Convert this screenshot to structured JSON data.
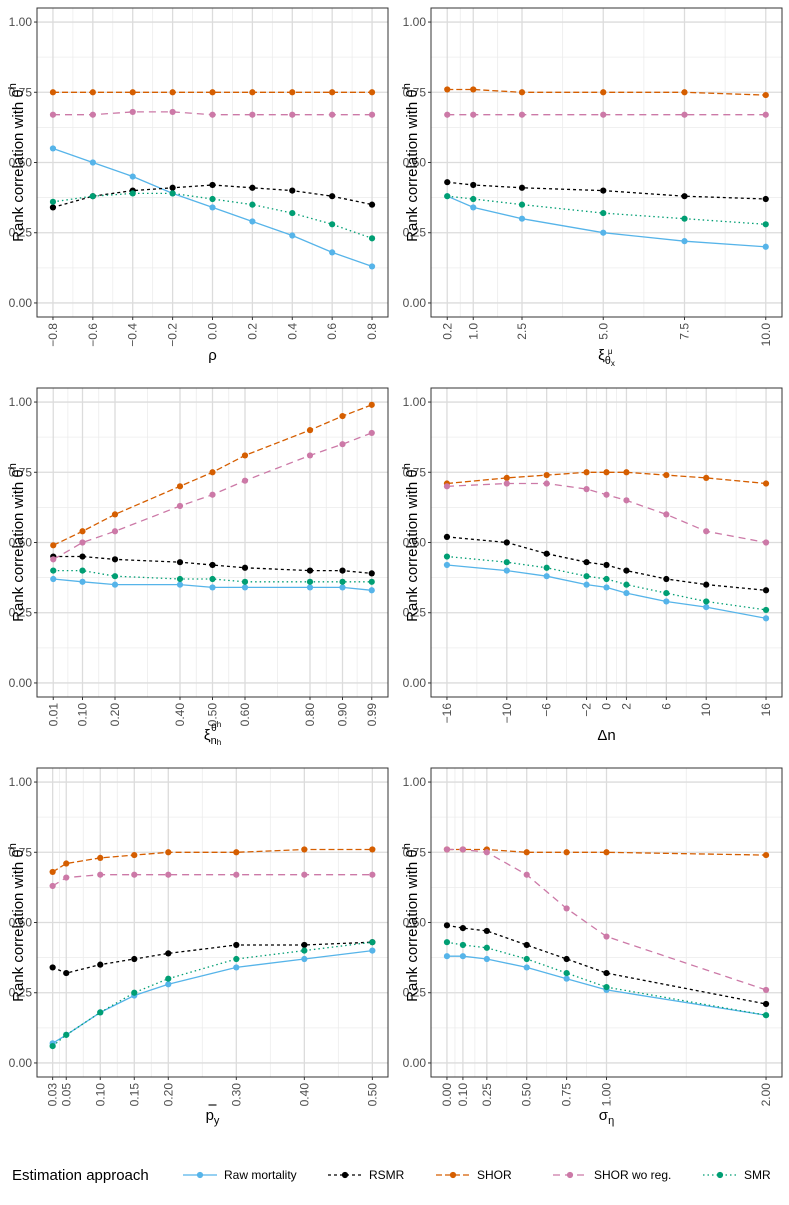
{
  "figure": {
    "ylabel": "Rank correlation with θ",
    "ylabel_sup": "h",
    "yticks": [
      "0.00",
      "0.25",
      "0.50",
      "0.75",
      "1.00"
    ]
  },
  "series_styles": [
    {
      "name": "Raw mortality",
      "color": "#56B4E9",
      "dash": "",
      "line": "solid"
    },
    {
      "name": "RSMR",
      "color": "#000000",
      "dash": "3,3",
      "line": "dotted"
    },
    {
      "name": "SHOR",
      "color": "#D55E00",
      "dash": "6,3",
      "line": "dashed"
    },
    {
      "name": "SHOR wo reg.",
      "color": "#CC79A7",
      "dash": "7,5",
      "line": "longdash"
    },
    {
      "name": "SMR",
      "color": "#009E73",
      "dash": "1.5,3",
      "line": "dotted"
    }
  ],
  "legend": {
    "title": "Estimation approach",
    "items": [
      "Raw mortality",
      "RSMR",
      "SHOR",
      "SHOR wo reg.",
      "SMR"
    ]
  },
  "chart_data": [
    {
      "type": "line",
      "xlabel": "ρ",
      "x": [
        -0.8,
        -0.6,
        -0.4,
        -0.2,
        0.0,
        0.2,
        0.4,
        0.6,
        0.8
      ],
      "xtick_labels": [
        "−0.8",
        "−0.6",
        "−0.4",
        "−0.2",
        "0.0",
        "0.2",
        "0.4",
        "0.6",
        "0.8"
      ],
      "xlim": [
        -0.88,
        0.88
      ],
      "ylim": [
        -0.05,
        1.05
      ],
      "series": [
        {
          "name": "Raw mortality",
          "values": [
            0.55,
            0.5,
            0.45,
            0.39,
            0.34,
            0.29,
            0.24,
            0.18,
            0.13
          ]
        },
        {
          "name": "RSMR",
          "values": [
            0.34,
            0.38,
            0.4,
            0.41,
            0.42,
            0.41,
            0.4,
            0.38,
            0.35
          ]
        },
        {
          "name": "SHOR",
          "values": [
            0.75,
            0.75,
            0.75,
            0.75,
            0.75,
            0.75,
            0.75,
            0.75,
            0.75
          ]
        },
        {
          "name": "SHOR wo reg.",
          "values": [
            0.67,
            0.67,
            0.68,
            0.68,
            0.67,
            0.67,
            0.67,
            0.67,
            0.67
          ]
        },
        {
          "name": "SMR",
          "values": [
            0.36,
            0.38,
            0.39,
            0.39,
            0.37,
            0.35,
            0.32,
            0.28,
            0.23
          ]
        }
      ]
    },
    {
      "type": "line",
      "xlabel": "ξ",
      "xlabel_sub": "θ",
      "xlabel_sub2": "x",
      "xlabel_supsup": "μ",
      "x": [
        0.2,
        1.0,
        2.5,
        5.0,
        7.5,
        10.0
      ],
      "xtick_labels": [
        "0.2",
        "1.0",
        "2.5",
        "5.0",
        "7.5",
        "10.0"
      ],
      "xlim": [
        -0.3,
        10.5
      ],
      "ylim": [
        -0.05,
        1.05
      ],
      "series": [
        {
          "name": "Raw mortality",
          "values": [
            0.38,
            0.34,
            0.3,
            0.25,
            0.22,
            0.2
          ]
        },
        {
          "name": "RSMR",
          "values": [
            0.43,
            0.42,
            0.41,
            0.4,
            0.38,
            0.37
          ]
        },
        {
          "name": "SHOR",
          "values": [
            0.76,
            0.76,
            0.75,
            0.75,
            0.75,
            0.74
          ]
        },
        {
          "name": "SHOR wo reg.",
          "values": [
            0.67,
            0.67,
            0.67,
            0.67,
            0.67,
            0.67
          ]
        },
        {
          "name": "SMR",
          "values": [
            0.38,
            0.37,
            0.35,
            0.32,
            0.3,
            0.28
          ]
        }
      ]
    },
    {
      "type": "line",
      "xlabel": "ξ",
      "xlabel_sub": "n",
      "xlabel_subsup": "h",
      "xlabel_sup": "θ",
      "xlabel_supsup": "h",
      "x": [
        0.01,
        0.1,
        0.2,
        0.4,
        0.5,
        0.6,
        0.8,
        0.9,
        0.99
      ],
      "xtick_labels": [
        "0.01",
        "0.10",
        "0.20",
        "0.40",
        "0.50",
        "0.60",
        "0.80",
        "0.90",
        "0.99"
      ],
      "xlim": [
        -0.04,
        1.04
      ],
      "ylim": [
        -0.05,
        1.05
      ],
      "series": [
        {
          "name": "Raw mortality",
          "values": [
            0.37,
            0.36,
            0.35,
            0.35,
            0.34,
            0.34,
            0.34,
            0.34,
            0.33
          ]
        },
        {
          "name": "RSMR",
          "values": [
            0.45,
            0.45,
            0.44,
            0.43,
            0.42,
            0.41,
            0.4,
            0.4,
            0.39
          ]
        },
        {
          "name": "SHOR",
          "values": [
            0.49,
            0.54,
            0.6,
            0.7,
            0.75,
            0.81,
            0.9,
            0.95,
            0.99
          ]
        },
        {
          "name": "SHOR wo reg.",
          "values": [
            0.44,
            0.5,
            0.54,
            0.63,
            0.67,
            0.72,
            0.81,
            0.85,
            0.89
          ]
        },
        {
          "name": "SMR",
          "values": [
            0.4,
            0.4,
            0.38,
            0.37,
            0.37,
            0.36,
            0.36,
            0.36,
            0.36
          ]
        }
      ]
    },
    {
      "type": "line",
      "xlabel": "Δn",
      "x": [
        -16,
        -10,
        -6,
        -2,
        0,
        2,
        6,
        10,
        16
      ],
      "xtick_labels": [
        "−16",
        "−10",
        "−6",
        "−2",
        "0",
        "2",
        "6",
        "10",
        "16"
      ],
      "xlim": [
        -17.6,
        17.6
      ],
      "ylim": [
        -0.05,
        1.05
      ],
      "series": [
        {
          "name": "Raw mortality",
          "values": [
            0.42,
            0.4,
            0.38,
            0.35,
            0.34,
            0.32,
            0.29,
            0.27,
            0.23
          ]
        },
        {
          "name": "RSMR",
          "values": [
            0.52,
            0.5,
            0.46,
            0.43,
            0.42,
            0.4,
            0.37,
            0.35,
            0.33
          ]
        },
        {
          "name": "SHOR",
          "values": [
            0.71,
            0.73,
            0.74,
            0.75,
            0.75,
            0.75,
            0.74,
            0.73,
            0.71
          ]
        },
        {
          "name": "SHOR wo reg.",
          "values": [
            0.7,
            0.71,
            0.71,
            0.69,
            0.67,
            0.65,
            0.6,
            0.54,
            0.5
          ]
        },
        {
          "name": "SMR",
          "values": [
            0.45,
            0.43,
            0.41,
            0.38,
            0.37,
            0.35,
            0.32,
            0.29,
            0.26
          ]
        }
      ]
    },
    {
      "type": "line",
      "xlabel": "p",
      "xlabel_bar": true,
      "xlabel_sub": "y",
      "x": [
        0.03,
        0.05,
        0.1,
        0.15,
        0.2,
        0.3,
        0.4,
        0.5
      ],
      "xtick_labels": [
        "0.03",
        "0.05",
        "0.10",
        "0.15",
        "0.20",
        "0.30",
        "0.40",
        "0.50"
      ],
      "xlim": [
        0.007,
        0.523
      ],
      "ylim": [
        -0.05,
        1.05
      ],
      "series": [
        {
          "name": "Raw mortality",
          "values": [
            0.07,
            0.1,
            0.18,
            0.24,
            0.28,
            0.34,
            0.37,
            0.4
          ]
        },
        {
          "name": "RSMR",
          "values": [
            0.34,
            0.32,
            0.35,
            0.37,
            0.39,
            0.42,
            0.42,
            0.43
          ]
        },
        {
          "name": "SHOR",
          "values": [
            0.68,
            0.71,
            0.73,
            0.74,
            0.75,
            0.75,
            0.76,
            0.76
          ]
        },
        {
          "name": "SHOR wo reg.",
          "values": [
            0.63,
            0.66,
            0.67,
            0.67,
            0.67,
            0.67,
            0.67,
            0.67
          ]
        },
        {
          "name": "SMR",
          "values": [
            0.06,
            0.1,
            0.18,
            0.25,
            0.3,
            0.37,
            0.4,
            0.43
          ]
        }
      ]
    },
    {
      "type": "line",
      "xlabel": "σ",
      "xlabel_sub": "η",
      "x": [
        0.0,
        0.1,
        0.25,
        0.5,
        0.75,
        1.0,
        2.0
      ],
      "xtick_labels": [
        "0.00",
        "0.10",
        "0.25",
        "0.50",
        "0.75",
        "1.00",
        "2.00"
      ],
      "xlim": [
        -0.1,
        2.1
      ],
      "ylim": [
        -0.05,
        1.05
      ],
      "series": [
        {
          "name": "Raw mortality",
          "values": [
            0.38,
            0.38,
            0.37,
            0.34,
            0.3,
            0.26,
            0.17
          ]
        },
        {
          "name": "RSMR",
          "values": [
            0.49,
            0.48,
            0.47,
            0.42,
            0.37,
            0.32,
            0.21
          ]
        },
        {
          "name": "SHOR",
          "values": [
            0.76,
            0.76,
            0.76,
            0.75,
            0.75,
            0.75,
            0.74
          ]
        },
        {
          "name": "SHOR wo reg.",
          "values": [
            0.76,
            0.76,
            0.75,
            0.67,
            0.55,
            0.45,
            0.26
          ]
        },
        {
          "name": "SMR",
          "values": [
            0.43,
            0.42,
            0.41,
            0.37,
            0.32,
            0.27,
            0.17
          ]
        }
      ]
    }
  ]
}
